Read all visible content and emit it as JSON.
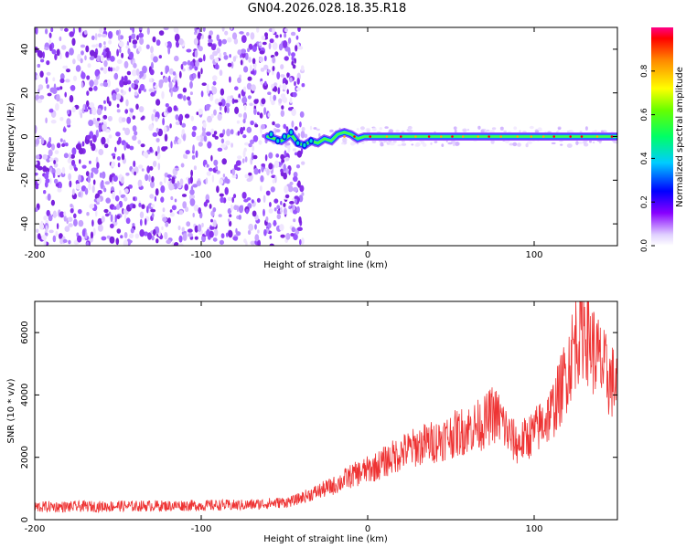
{
  "title": "GN04.2026.028.18.35.R18",
  "colors": {
    "spectral_low": "#8800ff",
    "spectral_mid": "#00ff66",
    "spectral_high": "#ff0000",
    "snr_line": "#ee3333"
  },
  "chart_data": [
    {
      "type": "heatmap",
      "title": "GN04.2026.028.18.35.R18",
      "xlabel": "Height of straight line (km)",
      "ylabel": "Frequency (Hz)",
      "xlim": [
        -200,
        150
      ],
      "ylim": [
        -50,
        50
      ],
      "xticks": [
        -200,
        -100,
        0,
        100
      ],
      "xtick_labels": [
        "-200",
        "-100",
        "0",
        "100"
      ],
      "yticks": [
        -40,
        -20,
        0,
        20,
        40
      ],
      "ytick_labels": [
        "-40",
        "-20",
        "0",
        "20",
        "40"
      ],
      "colorbar": {
        "label": "Normalized spectral amplitude",
        "range": [
          0,
          1
        ],
        "ticks": [
          0.0,
          0.2,
          0.4,
          0.6,
          0.8
        ],
        "tick_labels": [
          "0.0",
          "0.2",
          "0.4",
          "0.6",
          "0.8"
        ]
      },
      "noise_region_x": [
        -200,
        -42
      ],
      "signal_ridge": [
        [
          -60,
          0
        ],
        [
          -52,
          -2
        ],
        [
          -46,
          1
        ],
        [
          -42,
          -3
        ],
        [
          -38,
          -4
        ],
        [
          -34,
          -2
        ],
        [
          -30,
          -3
        ],
        [
          -26,
          -1
        ],
        [
          -22,
          -2
        ],
        [
          -18,
          1
        ],
        [
          -14,
          2
        ],
        [
          -10,
          1
        ],
        [
          -6,
          -1
        ],
        [
          -2,
          0
        ],
        [
          0,
          0
        ],
        [
          20,
          0
        ],
        [
          50,
          0
        ],
        [
          80,
          0
        ],
        [
          110,
          0
        ],
        [
          150,
          0
        ]
      ]
    },
    {
      "type": "line",
      "xlabel": "Height of straight line (km)",
      "ylabel": "SNR (10 * v/v)",
      "xlim": [
        -200,
        150
      ],
      "ylim": [
        0,
        7000
      ],
      "xticks": [
        -200,
        -100,
        0,
        100
      ],
      "xtick_labels": [
        "-200",
        "-100",
        "0",
        "100"
      ],
      "yticks": [
        0,
        2000,
        4000,
        6000
      ],
      "ytick_labels": [
        "0",
        "2000",
        "4000",
        "6000"
      ],
      "series": [
        {
          "x": [
            -200,
            -190,
            -180,
            -170,
            -160,
            -150,
            -140,
            -130,
            -120,
            -110,
            -100,
            -90,
            -80,
            -70,
            -60,
            -50,
            -45,
            -40,
            -35,
            -30,
            -25,
            -20,
            -15,
            -10,
            -5,
            0,
            5,
            10,
            15,
            20,
            25,
            30,
            35,
            40,
            45,
            50,
            55,
            60,
            65,
            70,
            75,
            80,
            85,
            90,
            95,
            100,
            105,
            110,
            115,
            120,
            125,
            130,
            135,
            140,
            145,
            150
          ],
          "y": [
            400,
            420,
            410,
            430,
            420,
            440,
            430,
            450,
            440,
            460,
            450,
            470,
            460,
            480,
            520,
            560,
            600,
            700,
            800,
            900,
            1000,
            1100,
            1250,
            1400,
            1500,
            1600,
            1700,
            1850,
            2000,
            2150,
            2250,
            2350,
            2450,
            2500,
            2600,
            2700,
            2800,
            2900,
            3000,
            3100,
            3400,
            3200,
            2700,
            2400,
            2600,
            2800,
            3100,
            3400,
            4000,
            4800,
            5800,
            6300,
            5500,
            5000,
            4500,
            4300
          ]
        }
      ]
    }
  ]
}
